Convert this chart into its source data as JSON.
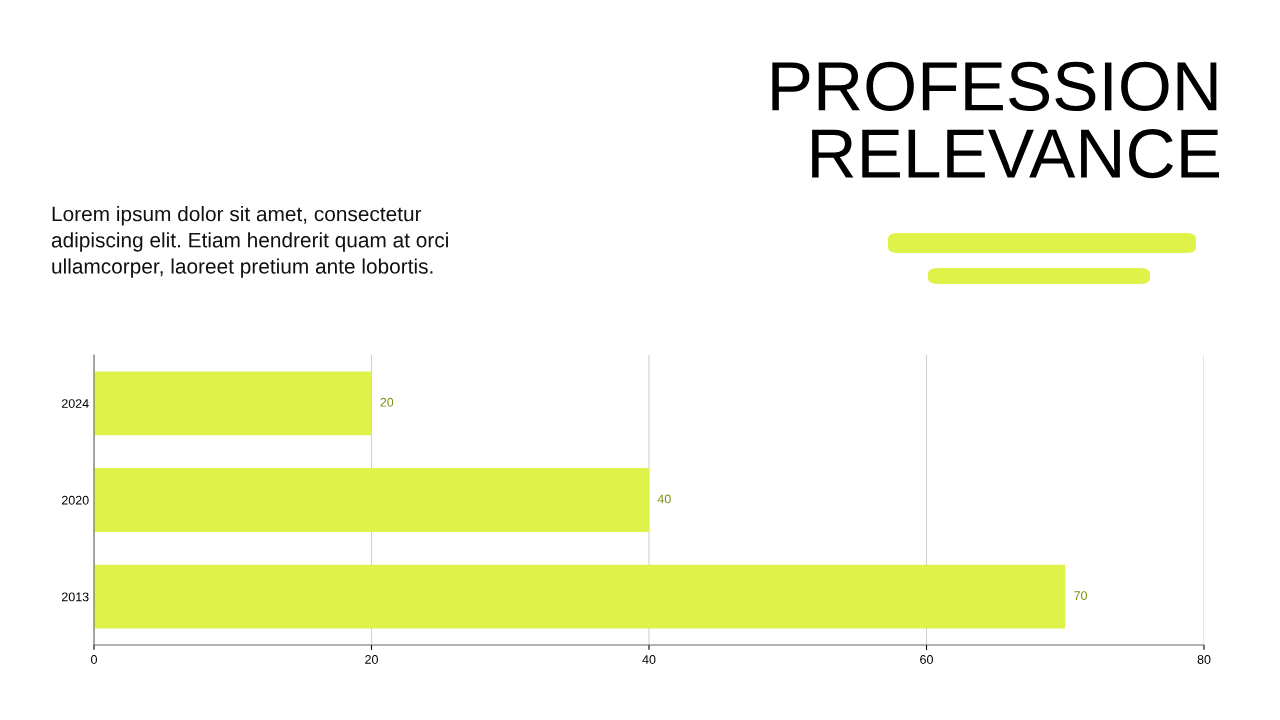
{
  "chart_data": {
    "type": "bar",
    "orientation": "horizontal",
    "title": "PROFESSION\nRELEVANCE",
    "subtitle": "Lorem ipsum dolor sit amet, consectetur\nadipiscing elit. Etiam hendrerit quam at orci\nullamcorper, laoreet pretium ante lobortis.",
    "categories": [
      "2024",
      "2020",
      "2013"
    ],
    "values": [
      20,
      40,
      70
    ],
    "color": "#dff24a",
    "xlim": [
      0,
      80
    ],
    "xticks": [
      0,
      20,
      40,
      60,
      80
    ],
    "grid": "x",
    "data_labels": true,
    "legend": false
  }
}
